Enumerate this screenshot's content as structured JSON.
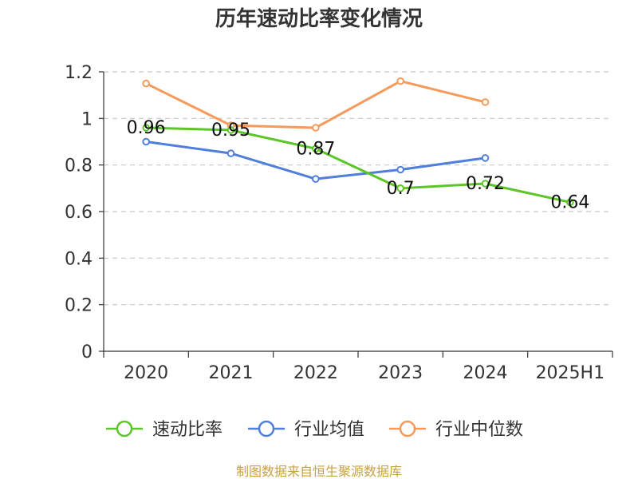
{
  "chart_data": {
    "type": "line",
    "title": "历年速动比率变化情况",
    "categories": [
      "2020",
      "2021",
      "2022",
      "2023",
      "2024",
      "2025H1"
    ],
    "ylim": [
      0,
      1.2
    ],
    "yticks": [
      "0",
      "0.2",
      "0.4",
      "0.6",
      "0.8",
      "1",
      "1.2"
    ],
    "grid": true,
    "legend_position": "bottom",
    "series": [
      {
        "name": "速动比率",
        "color": "#5cc528",
        "values": [
          0.96,
          0.95,
          0.87,
          0.7,
          0.72,
          0.64
        ],
        "labels": [
          "0.96",
          "0.95",
          "0.87",
          "0.7",
          "0.72",
          "0.64"
        ]
      },
      {
        "name": "行业均值",
        "color": "#4f7fdb",
        "values": [
          0.9,
          0.85,
          0.74,
          0.78,
          0.83,
          null
        ]
      },
      {
        "name": "行业中位数",
        "color": "#f59a5a",
        "values": [
          1.15,
          0.97,
          0.96,
          1.16,
          1.07,
          null
        ]
      }
    ]
  },
  "source": "制图数据来自恒生聚源数据库"
}
